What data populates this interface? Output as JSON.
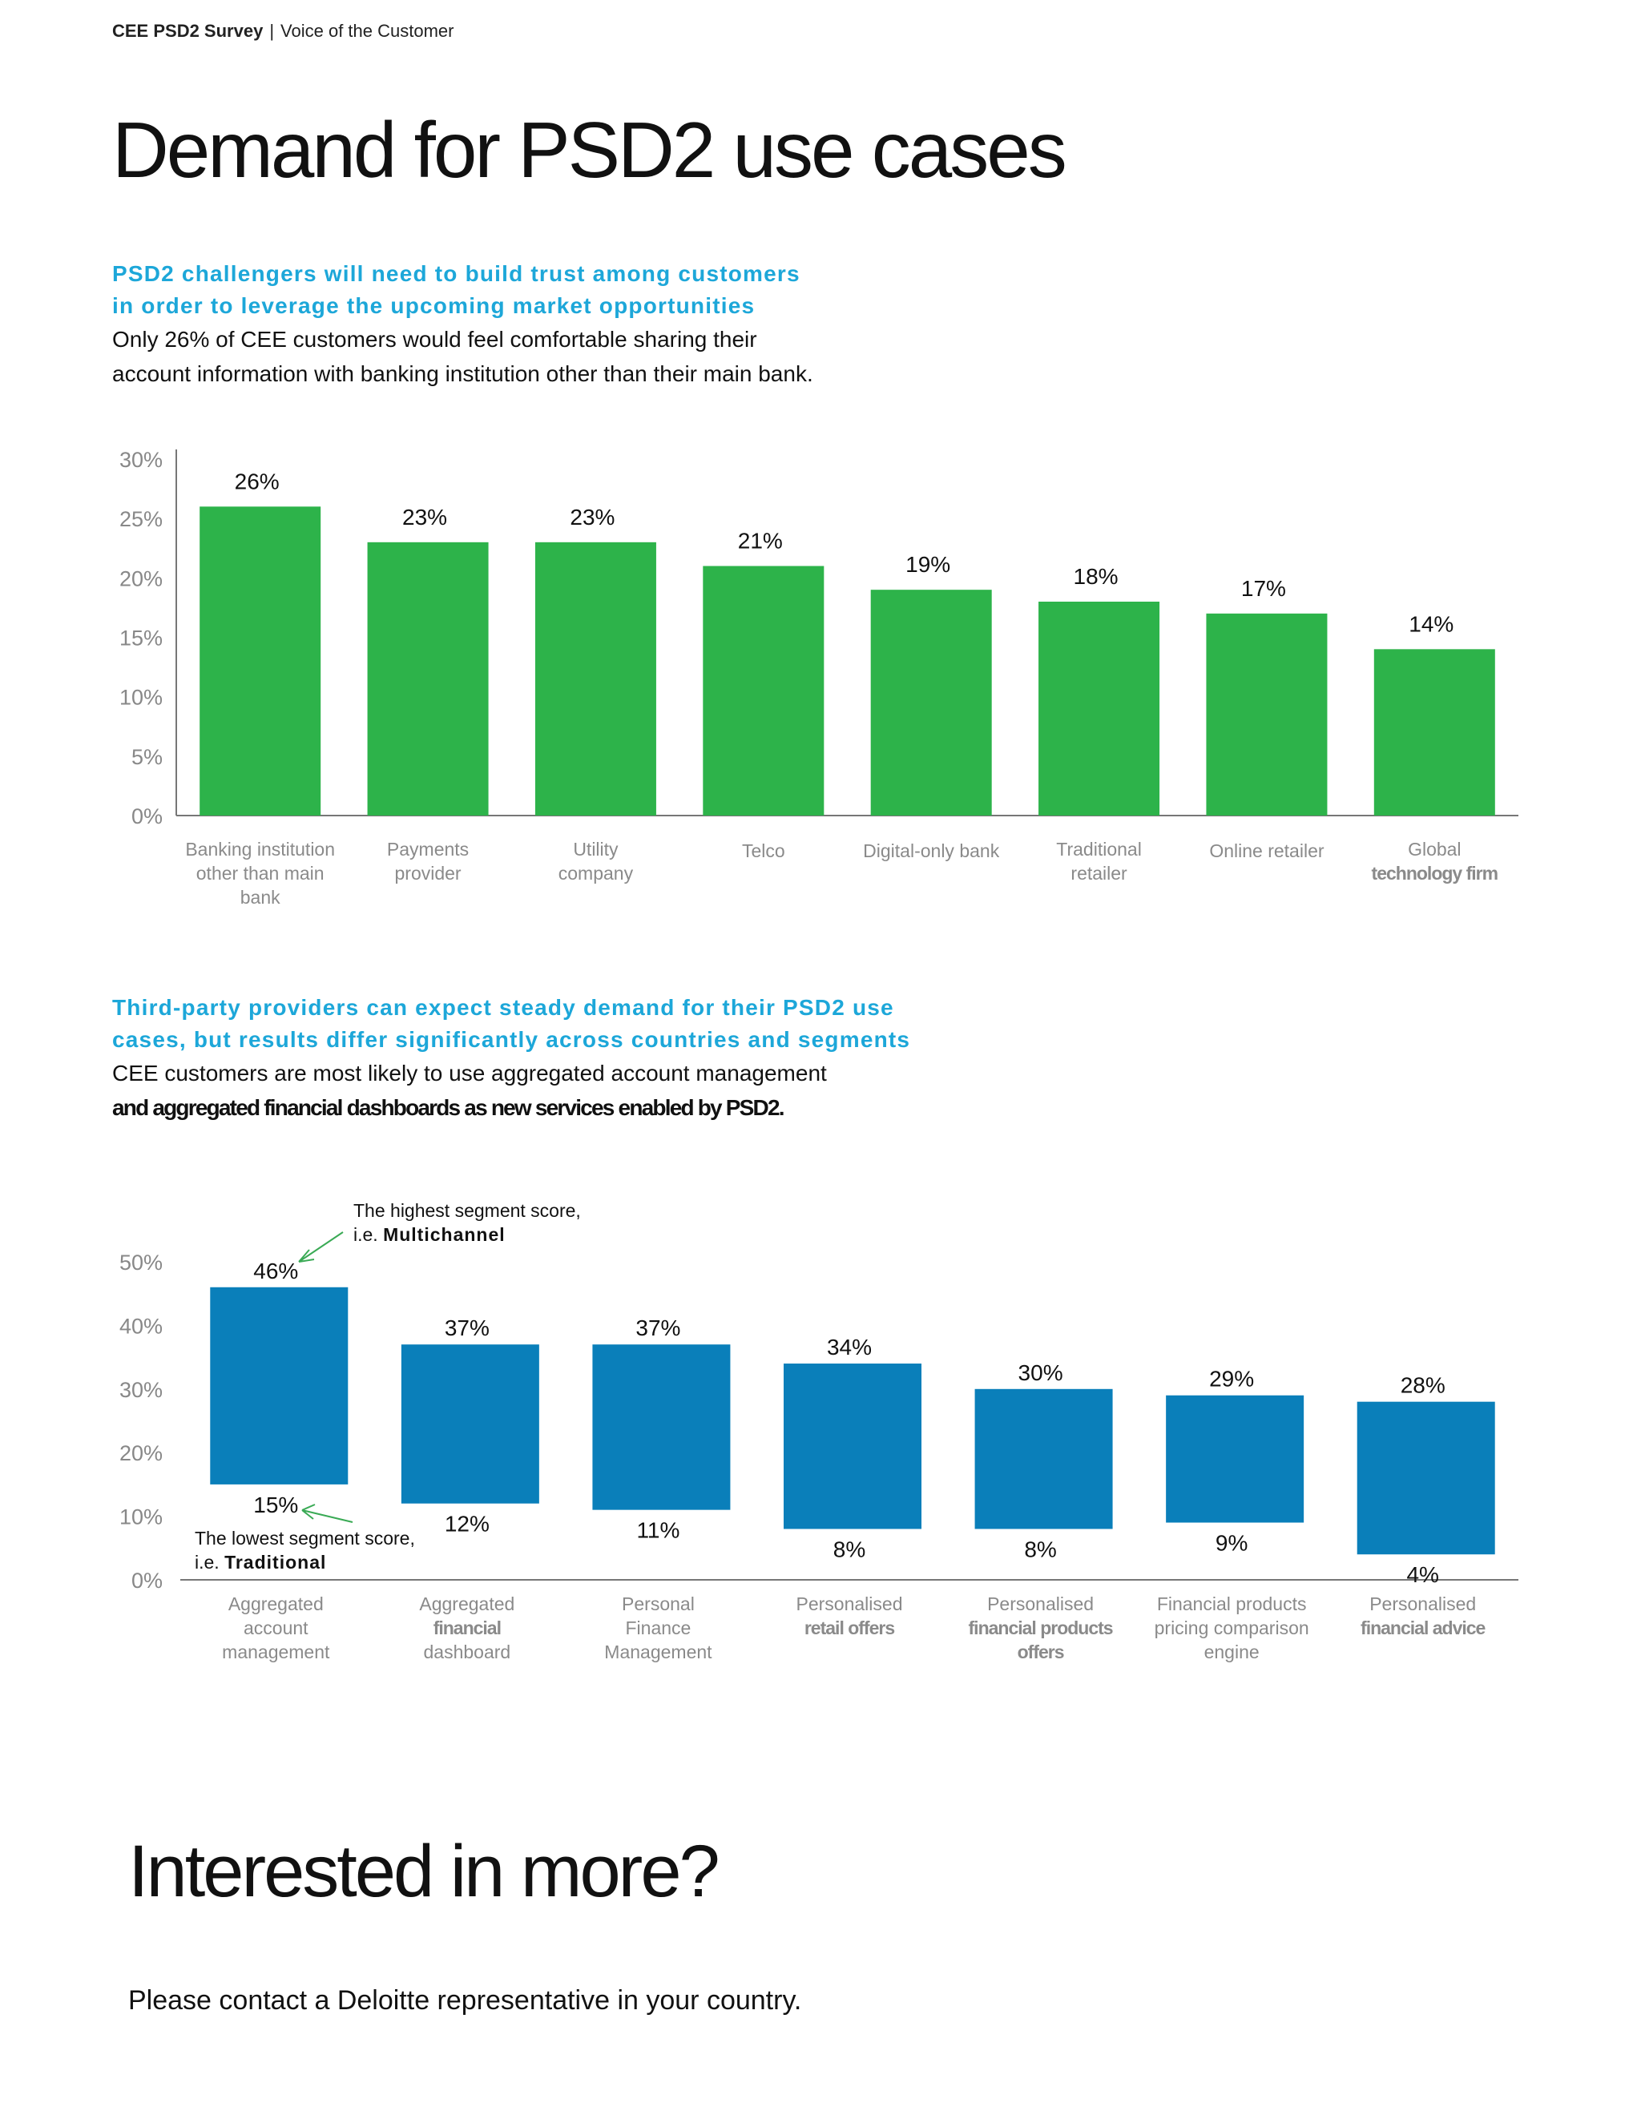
{
  "header": {
    "survey": "CEE PSD2 Survey",
    "separator": "|",
    "section": "Voice of the Customer"
  },
  "title": "Demand for PSD2 use  cases",
  "section1": {
    "heading_lines": [
      "PSD2 challengers will need to build trust among customers",
      "in order to leverage the upcoming market opportunities"
    ],
    "body_lines": [
      "Only 26% of CEE customers would feel comfortable sharing their",
      "account information with banking institution other than their main bank."
    ]
  },
  "section2": {
    "heading_lines": [
      "Third-party providers can expect steady demand for their PSD2 use",
      "cases, but results differ significantly across countries and segments"
    ],
    "body_lines": [
      "CEE customers are most likely to use aggregated account  management",
      "and aggregated financial dashboards as new services enabled by  PSD2."
    ]
  },
  "chart_data": [
    {
      "type": "bar",
      "yticks": [
        "0%",
        "5%",
        "10%",
        "15%",
        "20%",
        "25%",
        "30%"
      ],
      "ylim": [
        0,
        30
      ],
      "categories": [
        [
          "Banking institution",
          "other than main",
          "bank"
        ],
        [
          "Payments",
          "provider"
        ],
        [
          "Utility",
          "company"
        ],
        [
          "Telco"
        ],
        [
          "Digital-only bank"
        ],
        [
          "Traditional",
          "retailer"
        ],
        [
          "Online retailer"
        ],
        [
          "Global",
          "technology firm"
        ]
      ],
      "values": [
        26,
        23,
        23,
        21,
        19,
        18,
        17,
        14
      ],
      "value_labels": [
        "26%",
        "23%",
        "23%",
        "21%",
        "19%",
        "18%",
        "17%",
        "14%"
      ],
      "bar_color": "#2db34a",
      "grid": false
    },
    {
      "type": "bar",
      "subtype": "floating-range",
      "yticks": [
        "0%",
        "10%",
        "20%",
        "30%",
        "40%",
        "50%"
      ],
      "ylim": [
        0,
        50
      ],
      "categories": [
        [
          "Aggregated",
          "account",
          "management"
        ],
        [
          "Aggregated",
          "financial",
          "dashboard"
        ],
        [
          "Personal",
          "Finance",
          "Management"
        ],
        [
          "Personalised",
          "retail offers"
        ],
        [
          "Personalised",
          "financial products",
          "offers"
        ],
        [
          "Financial products",
          "pricing comparison",
          "engine"
        ],
        [
          "Personalised",
          "financial advice"
        ]
      ],
      "high": [
        46,
        37,
        37,
        34,
        30,
        29,
        28
      ],
      "low": [
        15,
        12,
        11,
        8,
        8,
        9,
        4
      ],
      "high_labels": [
        "46%",
        "37%",
        "37%",
        "34%",
        "30%",
        "29%",
        "28%"
      ],
      "low_labels": [
        "15%",
        "12%",
        "11%",
        "8%",
        "8%",
        "9%",
        "4%"
      ],
      "bar_color": "#0a7fba",
      "annotation_high": {
        "line1": "The highest segment score,",
        "prefix": "i.e. ",
        "segment": "Multichannel"
      },
      "annotation_low": {
        "line1": "The lowest segment score,",
        "prefix": "i.e. ",
        "segment": "Traditional"
      },
      "annotation_arrow_color": "#3aaa55",
      "grid": false
    }
  ],
  "cta": {
    "title": "Interested in more?",
    "text": "Please contact a Deloitte representative in your country."
  }
}
